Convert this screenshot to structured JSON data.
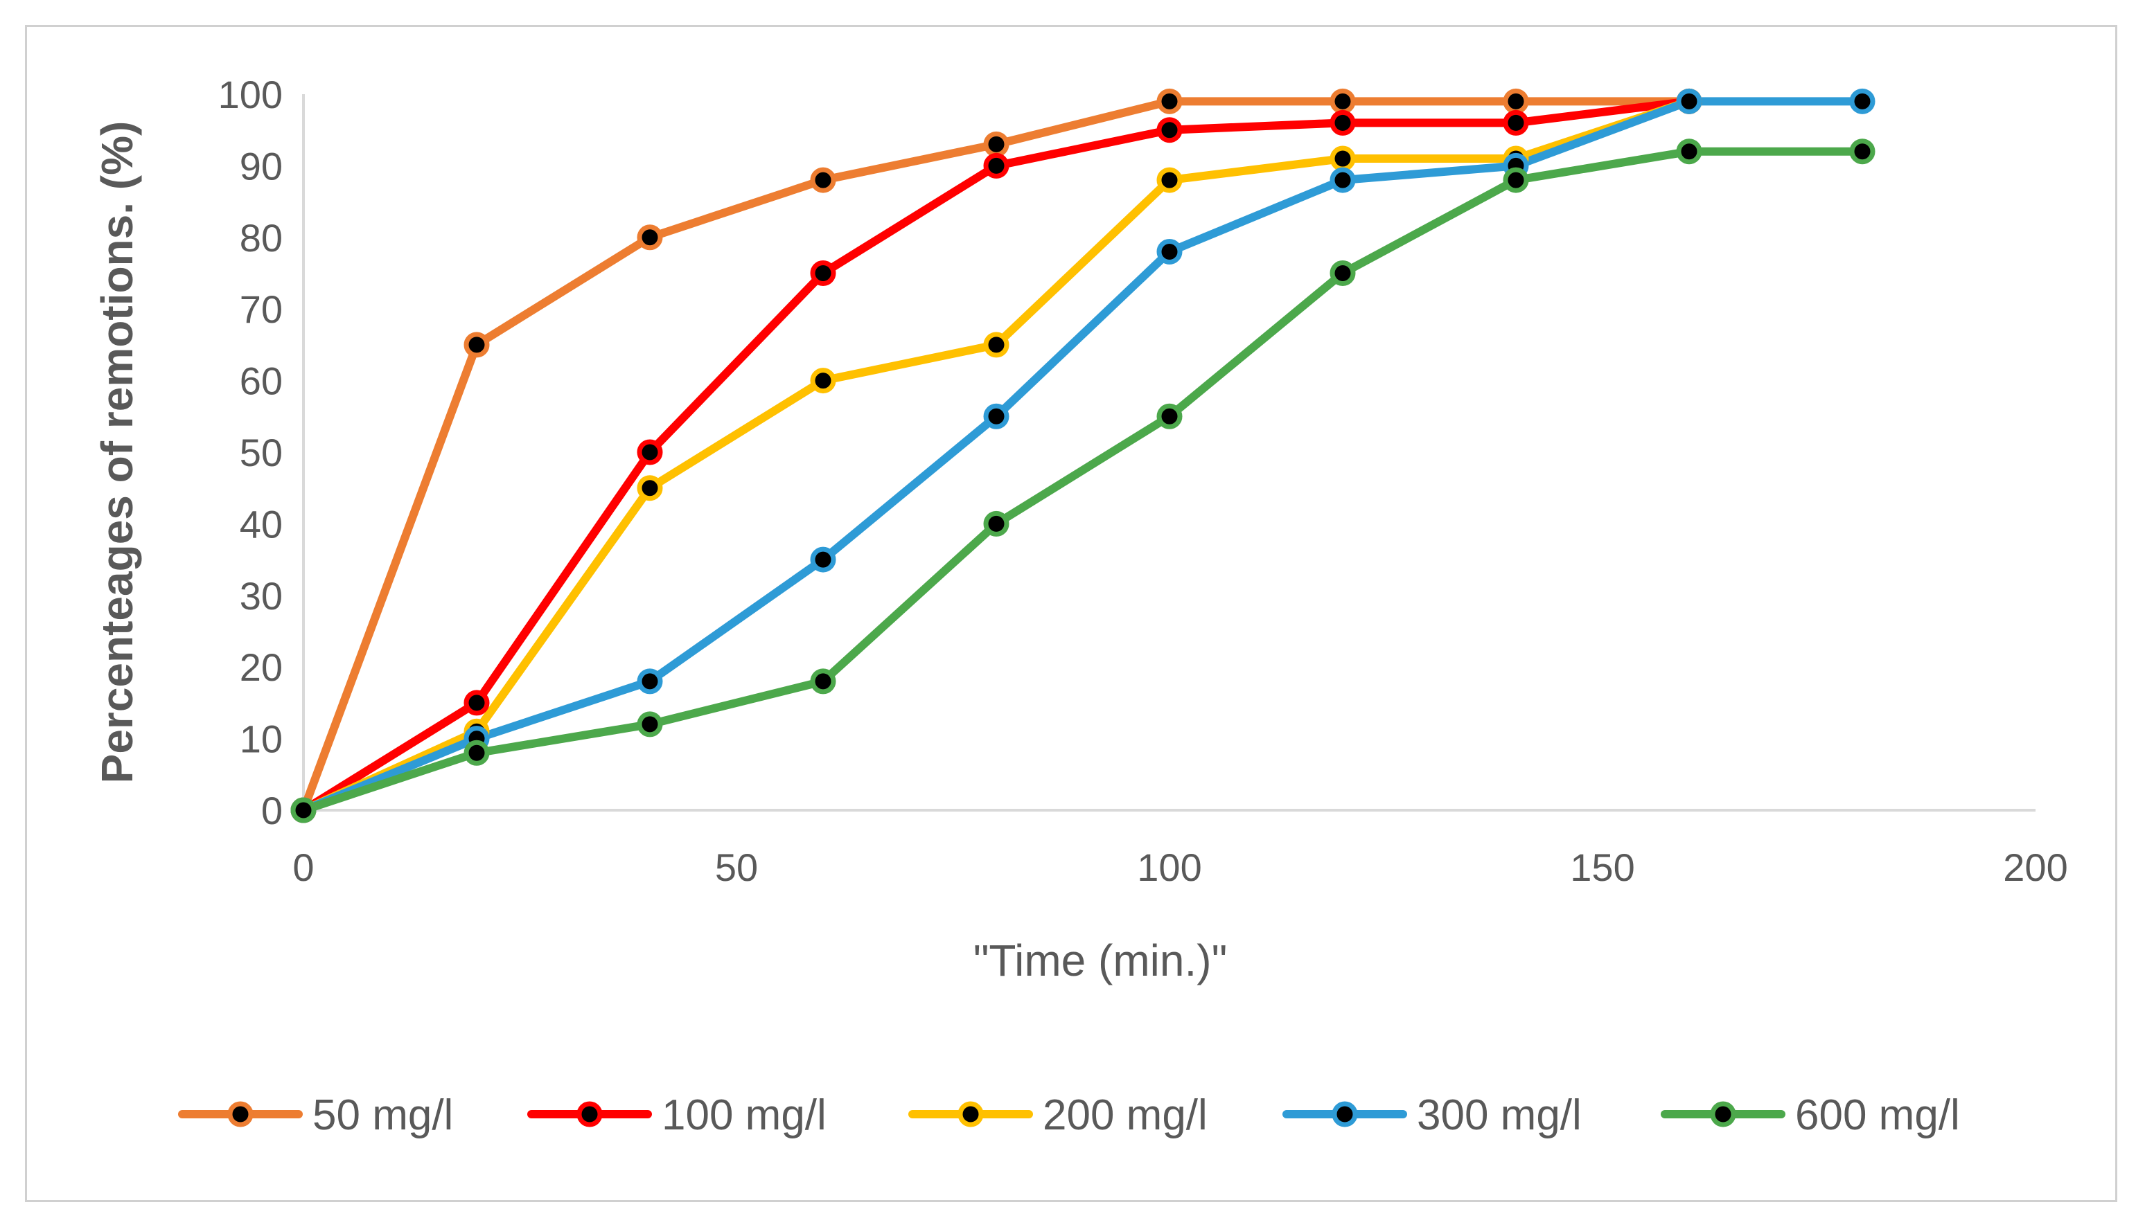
{
  "chart_data": {
    "type": "line",
    "title": "",
    "xlabel": "\"Time (min.)\"",
    "ylabel": "Percenteages of remotions. (%)",
    "xlim": [
      0,
      200
    ],
    "ylim": [
      0,
      100
    ],
    "xticks": [
      0,
      50,
      100,
      150,
      200
    ],
    "yticks": [
      0,
      10,
      20,
      30,
      40,
      50,
      60,
      70,
      80,
      90,
      100
    ],
    "x": [
      0,
      20,
      40,
      60,
      80,
      100,
      120,
      140,
      160,
      180
    ],
    "grid": false,
    "legend_position": "bottom",
    "marker_fill": "#000000",
    "series": [
      {
        "name": "50 mg/l",
        "color": "#ED7D31",
        "values": [
          0,
          65,
          80,
          88,
          93,
          99,
          99,
          99,
          99,
          null
        ]
      },
      {
        "name": "100 mg/l",
        "color": "#FF0000",
        "values": [
          0,
          15,
          50,
          75,
          90,
          95,
          96,
          96,
          99,
          null
        ]
      },
      {
        "name": "200 mg/l",
        "color": "#FFC000",
        "values": [
          0,
          11,
          45,
          60,
          65,
          88,
          91,
          91,
          99,
          null
        ]
      },
      {
        "name": "300 mg/l",
        "color": "#2E9BD6",
        "values": [
          0,
          10,
          18,
          35,
          55,
          78,
          88,
          90,
          99,
          99
        ]
      },
      {
        "name": "600 mg/l",
        "color": "#4CA84B",
        "values": [
          0,
          8,
          12,
          18,
          40,
          55,
          75,
          88,
          92,
          92
        ]
      }
    ]
  }
}
